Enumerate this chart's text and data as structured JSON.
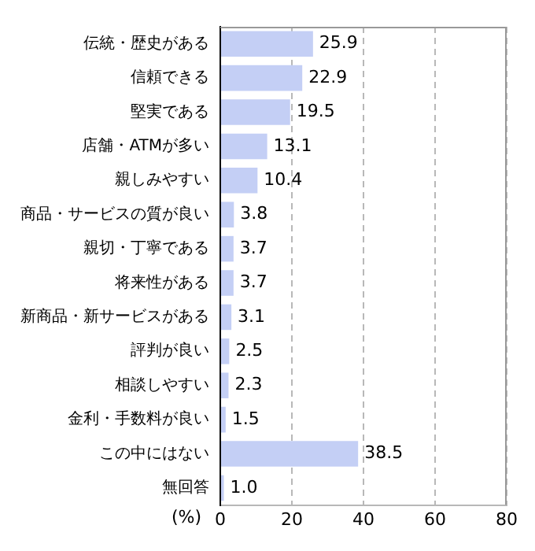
{
  "chart_data": {
    "type": "bar",
    "orientation": "horizontal",
    "xlabel": "(%)",
    "categories": [
      "伝統・歴史がある",
      "信頼できる",
      "堅実である",
      "店舗・ATMが多い",
      "親しみやすい",
      "商品・サービスの質が良い",
      "親切・丁寧である",
      "将来性がある",
      "新商品・新サービスがある",
      "評判が良い",
      "相談しやすい",
      "金利・手数料が良い",
      "この中にはない",
      "無回答"
    ],
    "values": [
      25.9,
      22.9,
      19.5,
      13.1,
      10.4,
      3.8,
      3.7,
      3.7,
      3.1,
      2.5,
      2.3,
      1.5,
      38.5,
      1.0
    ],
    "value_labels": [
      "25.9",
      "22.9",
      "19.5",
      "13.1",
      "10.4",
      "3.8",
      "3.7",
      "3.7",
      "3.1",
      "2.5",
      "2.3",
      "1.5",
      "38.5",
      "1.0"
    ],
    "color": "#c4cff5",
    "xlim": [
      0,
      80
    ],
    "xticks": [
      0,
      20,
      40,
      60,
      80
    ],
    "grid": "x",
    "legend": false
  }
}
